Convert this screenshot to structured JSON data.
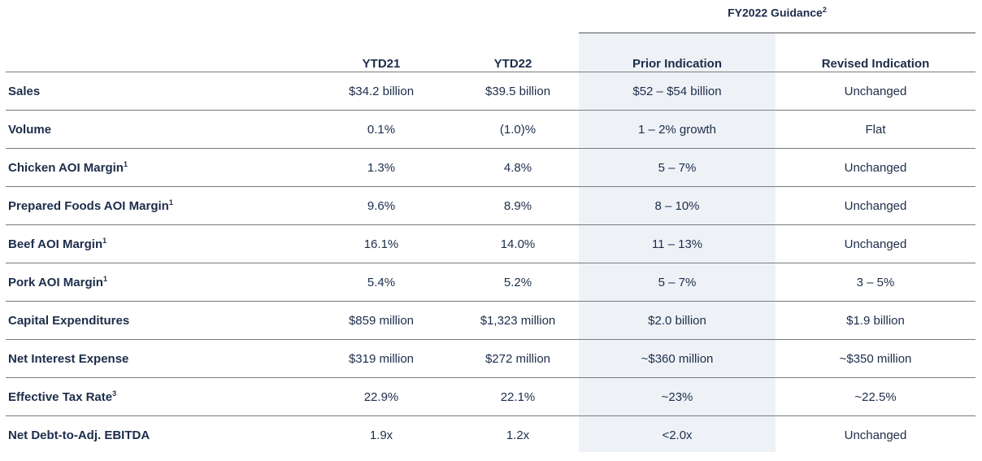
{
  "header": {
    "guidance_title": "FY2022 Guidance",
    "guidance_sup": "2"
  },
  "columns": {
    "ytd21": "YTD21",
    "ytd22": "YTD22",
    "prior": "Prior Indication",
    "revised": "Revised Indication"
  },
  "rows": [
    {
      "label": "Sales",
      "sup": "",
      "ytd21": "$34.2 billion",
      "ytd22": "$39.5 billion",
      "prior": "$52 – $54 billion",
      "revised": "Unchanged"
    },
    {
      "label": "Volume",
      "sup": "",
      "ytd21": "0.1%",
      "ytd22": "(1.0)%",
      "prior": "1 – 2% growth",
      "revised": "Flat"
    },
    {
      "label": "Chicken AOI Margin",
      "sup": "1",
      "ytd21": "1.3%",
      "ytd22": "4.8%",
      "prior": "5 – 7%",
      "revised": "Unchanged"
    },
    {
      "label": "Prepared Foods AOI Margin",
      "sup": "1",
      "ytd21": "9.6%",
      "ytd22": "8.9%",
      "prior": "8 – 10%",
      "revised": "Unchanged"
    },
    {
      "label": "Beef AOI Margin",
      "sup": "1",
      "ytd21": "16.1%",
      "ytd22": "14.0%",
      "prior": "11 – 13%",
      "revised": "Unchanged"
    },
    {
      "label": "Pork AOI Margin",
      "sup": "1",
      "ytd21": "5.4%",
      "ytd22": "5.2%",
      "prior": "5 – 7%",
      "revised": "3 – 5%"
    },
    {
      "label": "Capital Expenditures",
      "sup": "",
      "ytd21": "$859 million",
      "ytd22": "$1,323 million",
      "prior": "$2.0 billion",
      "revised": "$1.9 billion"
    },
    {
      "label": "Net Interest Expense",
      "sup": "",
      "ytd21": "$319 million",
      "ytd22": "$272 million",
      "prior": "~$360 million",
      "revised": "~$350 million"
    },
    {
      "label": "Effective Tax Rate",
      "sup": "3",
      "ytd21": "22.9%",
      "ytd22": "22.1%",
      "prior": "~23%",
      "revised": "~22.5%"
    },
    {
      "label": "Net Debt-to-Adj. EBITDA",
      "sup": "",
      "ytd21": "1.9x",
      "ytd22": "1.2x",
      "prior": "<2.0x",
      "revised": "Unchanged"
    }
  ],
  "colors": {
    "text": "#1c2d4a",
    "highlight": "#eef2f7",
    "rule": "#7a7a7a"
  }
}
